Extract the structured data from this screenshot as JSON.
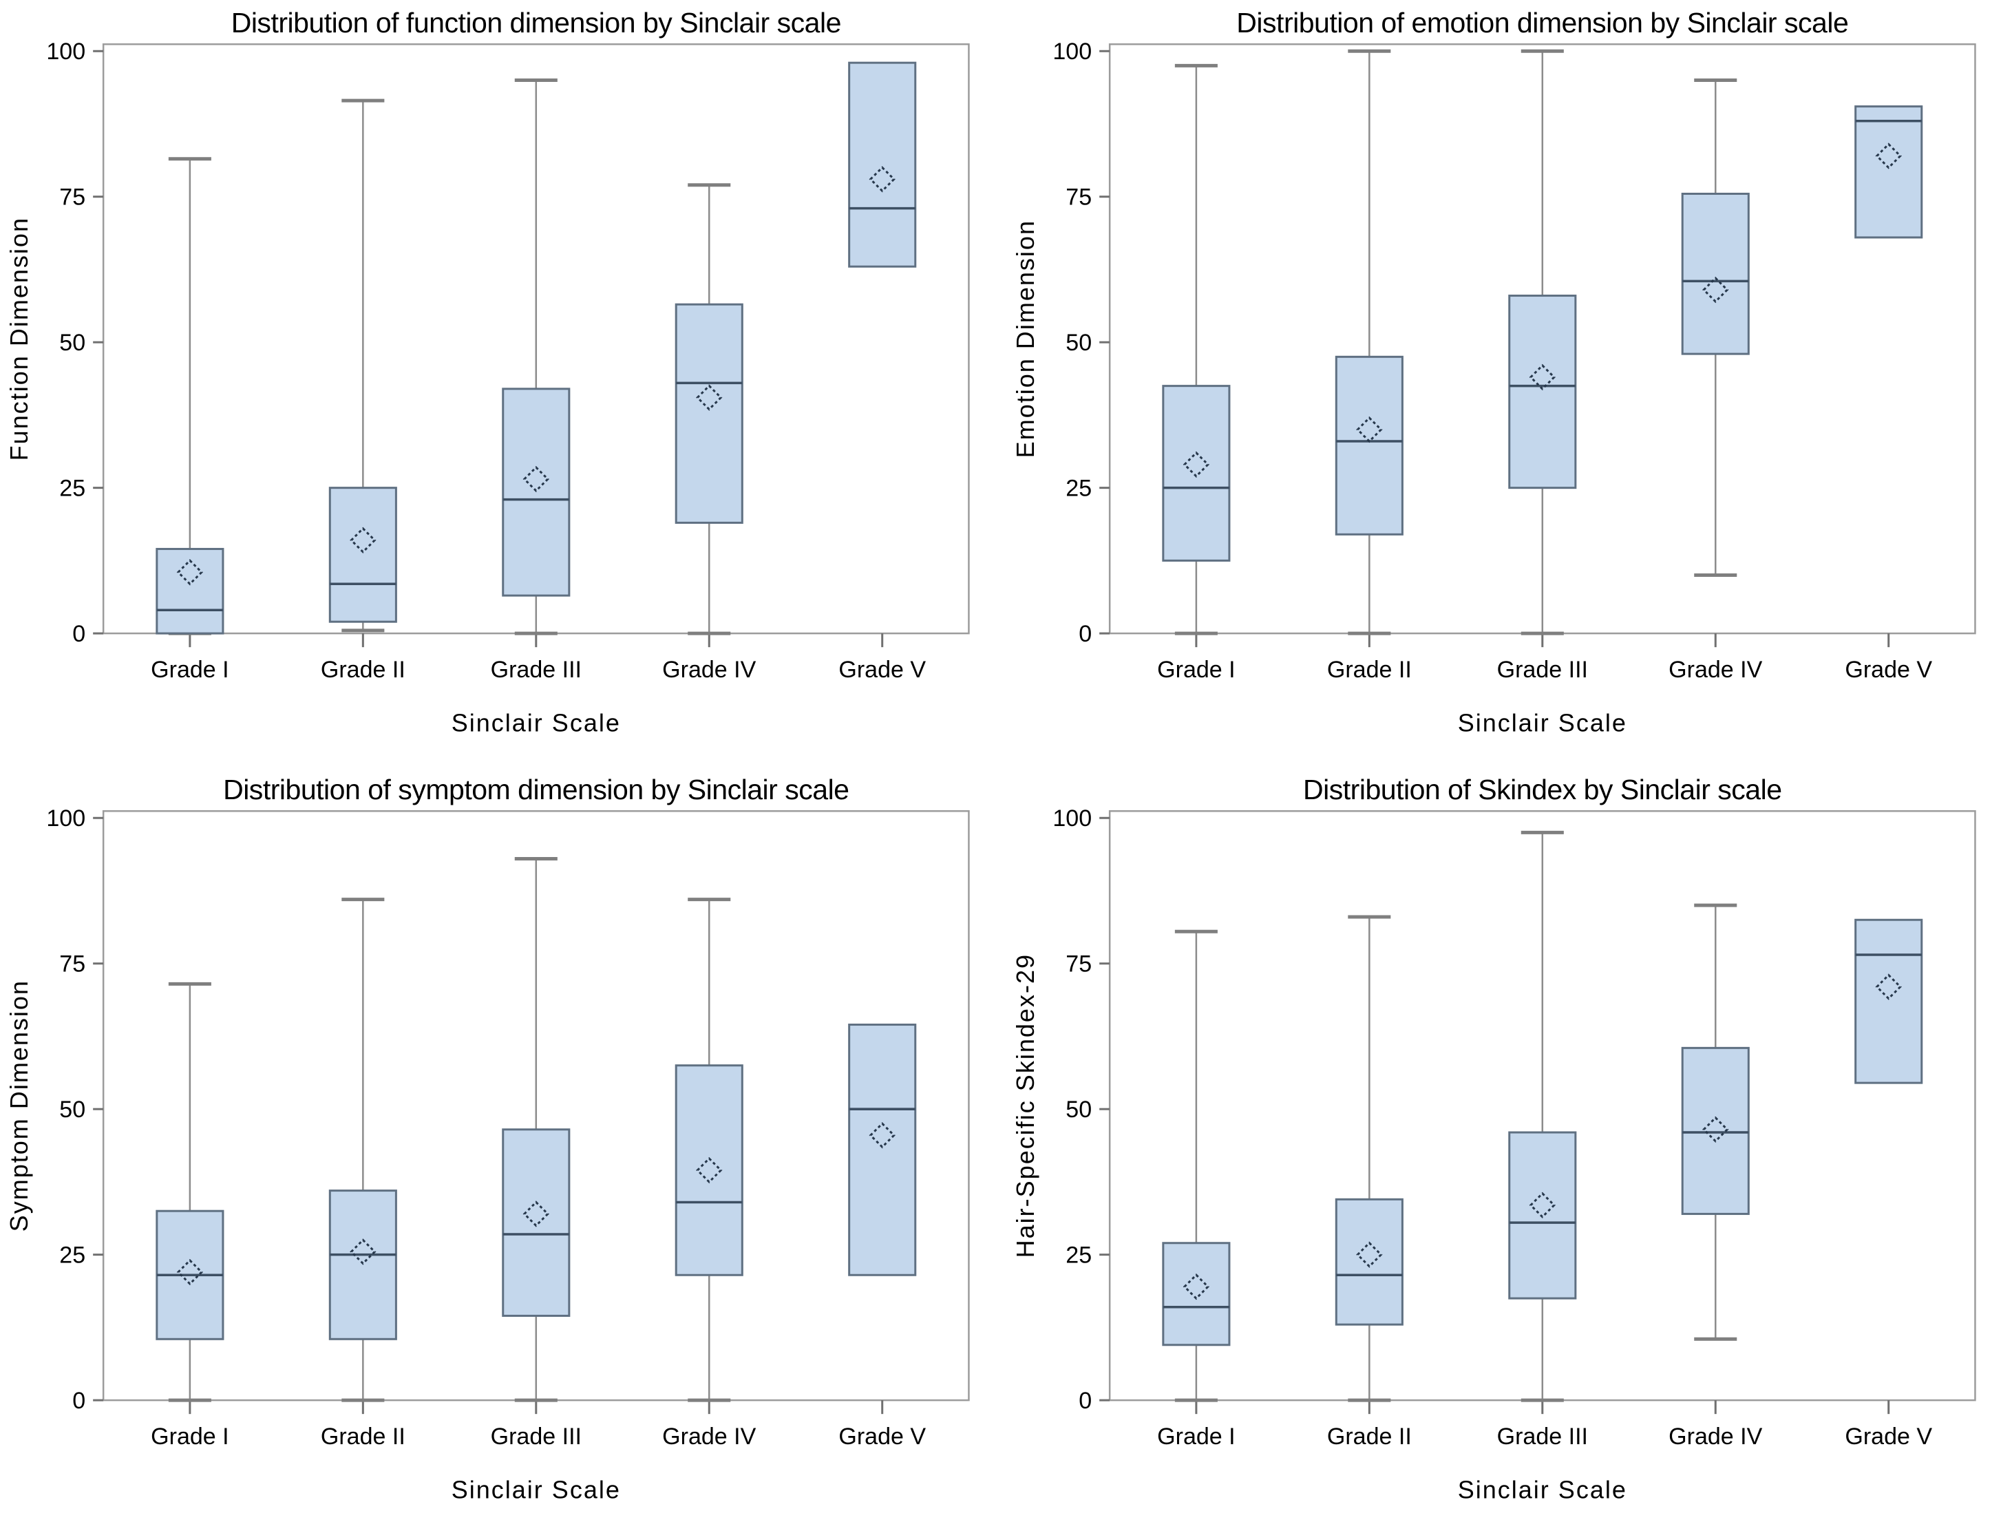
{
  "page": {
    "background": "#ffffff"
  },
  "style": {
    "box_fill": "#c4d7ec",
    "box_border": "#5f7082",
    "median_color": "#3d4f63",
    "whisker_color": "#8c8c8c",
    "whisker_cap_color": "#7f7f7f",
    "mean_marker_color": "#26374b",
    "frame_color": "#9c9c9c",
    "tick_color": "#707070",
    "text_color": "#000000"
  },
  "axis_defaults": {
    "x_label": "Sinclair Scale",
    "categories": [
      "Grade I",
      "Grade II",
      "Grade III",
      "Grade IV",
      "Grade V"
    ],
    "y_ticks": [
      0,
      25,
      50,
      75,
      100
    ],
    "ylim": [
      0,
      100
    ]
  },
  "chart_data": [
    {
      "type": "box",
      "id": "function-dimension",
      "title": "Distribution of function dimension by Sinclair scale",
      "xlabel": "Sinclair Scale",
      "ylabel": "Function Dimension",
      "ylim": [
        0,
        100
      ],
      "y_ticks": [
        0,
        25,
        50,
        75,
        100
      ],
      "grid": false,
      "mean_marker": "diamond",
      "categories": [
        "Grade I",
        "Grade II",
        "Grade III",
        "Grade IV",
        "Grade V"
      ],
      "series": [
        {
          "category": "Grade I",
          "whisker_low": 0,
          "q1": 0,
          "median": 4,
          "q3": 14.5,
          "whisker_high": 81.5,
          "mean": 10.5
        },
        {
          "category": "Grade II",
          "whisker_low": 0.5,
          "q1": 2,
          "median": 8.5,
          "q3": 25,
          "whisker_high": 91.5,
          "mean": 16
        },
        {
          "category": "Grade III",
          "whisker_low": 0,
          "q1": 6.5,
          "median": 23,
          "q3": 42,
          "whisker_high": 95,
          "mean": 26.5
        },
        {
          "category": "Grade IV",
          "whisker_low": 0,
          "q1": 19,
          "median": 43,
          "q3": 56.5,
          "whisker_high": 77,
          "mean": 40.5
        },
        {
          "category": "Grade V",
          "whisker_low": null,
          "q1": 63,
          "median": 73,
          "q3": 98,
          "whisker_high": null,
          "mean": 78
        }
      ]
    },
    {
      "type": "box",
      "id": "emotion-dimension",
      "title": "Distribution of emotion dimension by Sinclair scale",
      "xlabel": "Sinclair Scale",
      "ylabel": "Emotion Dimension",
      "ylim": [
        0,
        100
      ],
      "y_ticks": [
        0,
        25,
        50,
        75,
        100
      ],
      "grid": false,
      "mean_marker": "diamond",
      "categories": [
        "Grade I",
        "Grade II",
        "Grade III",
        "Grade IV",
        "Grade V"
      ],
      "series": [
        {
          "category": "Grade I",
          "whisker_low": 0,
          "q1": 12.5,
          "median": 25,
          "q3": 42.5,
          "whisker_high": 97.5,
          "mean": 29
        },
        {
          "category": "Grade II",
          "whisker_low": 0,
          "q1": 17,
          "median": 33,
          "q3": 47.5,
          "whisker_high": 100,
          "mean": 35
        },
        {
          "category": "Grade III",
          "whisker_low": 0,
          "q1": 25,
          "median": 42.5,
          "q3": 58,
          "whisker_high": 100,
          "mean": 44
        },
        {
          "category": "Grade IV",
          "whisker_low": 10,
          "q1": 48,
          "median": 60.5,
          "q3": 75.5,
          "whisker_high": 95,
          "mean": 59
        },
        {
          "category": "Grade V",
          "whisker_low": null,
          "q1": 68,
          "median": 88,
          "q3": 90.5,
          "whisker_high": null,
          "mean": 82
        }
      ]
    },
    {
      "type": "box",
      "id": "symptom-dimension",
      "title": "Distribution of symptom dimension by Sinclair scale",
      "xlabel": "Sinclair Scale",
      "ylabel": "Symptom Dimension",
      "ylim": [
        0,
        100
      ],
      "y_ticks": [
        0,
        25,
        50,
        75,
        100
      ],
      "grid": false,
      "mean_marker": "diamond",
      "categories": [
        "Grade I",
        "Grade II",
        "Grade III",
        "Grade IV",
        "Grade V"
      ],
      "series": [
        {
          "category": "Grade I",
          "whisker_low": 0,
          "q1": 10.5,
          "median": 21.5,
          "q3": 32.5,
          "whisker_high": 71.5,
          "mean": 22
        },
        {
          "category": "Grade II",
          "whisker_low": 0,
          "q1": 10.5,
          "median": 25,
          "q3": 36,
          "whisker_high": 86,
          "mean": 25.5
        },
        {
          "category": "Grade III",
          "whisker_low": 0,
          "q1": 14.5,
          "median": 28.5,
          "q3": 46.5,
          "whisker_high": 93,
          "mean": 32
        },
        {
          "category": "Grade IV",
          "whisker_low": 0,
          "q1": 21.5,
          "median": 34,
          "q3": 57.5,
          "whisker_high": 86,
          "mean": 39.5
        },
        {
          "category": "Grade V",
          "whisker_low": null,
          "q1": 21.5,
          "median": 50,
          "q3": 64.5,
          "whisker_high": null,
          "mean": 45.5
        }
      ]
    },
    {
      "type": "box",
      "id": "skindex",
      "title": "Distribution of Skindex by Sinclair scale",
      "xlabel": "Sinclair Scale",
      "ylabel": "Hair-Specific Skindex-29",
      "ylim": [
        0,
        100
      ],
      "y_ticks": [
        0,
        25,
        50,
        75,
        100
      ],
      "grid": false,
      "mean_marker": "diamond",
      "categories": [
        "Grade I",
        "Grade II",
        "Grade III",
        "Grade IV",
        "Grade V"
      ],
      "series": [
        {
          "category": "Grade I",
          "whisker_low": 0,
          "q1": 9.5,
          "median": 16,
          "q3": 27,
          "whisker_high": 80.5,
          "mean": 19.5
        },
        {
          "category": "Grade II",
          "whisker_low": 0,
          "q1": 13,
          "median": 21.5,
          "q3": 34.5,
          "whisker_high": 83,
          "mean": 25
        },
        {
          "category": "Grade III",
          "whisker_low": 0,
          "q1": 17.5,
          "median": 30.5,
          "q3": 46,
          "whisker_high": 97.5,
          "mean": 33.5
        },
        {
          "category": "Grade IV",
          "whisker_low": 10.5,
          "q1": 32,
          "median": 46,
          "q3": 60.5,
          "whisker_high": 85,
          "mean": 46.5
        },
        {
          "category": "Grade V",
          "whisker_low": null,
          "q1": 54.5,
          "median": 76.5,
          "q3": 82.5,
          "whisker_high": null,
          "mean": 71
        }
      ]
    }
  ]
}
